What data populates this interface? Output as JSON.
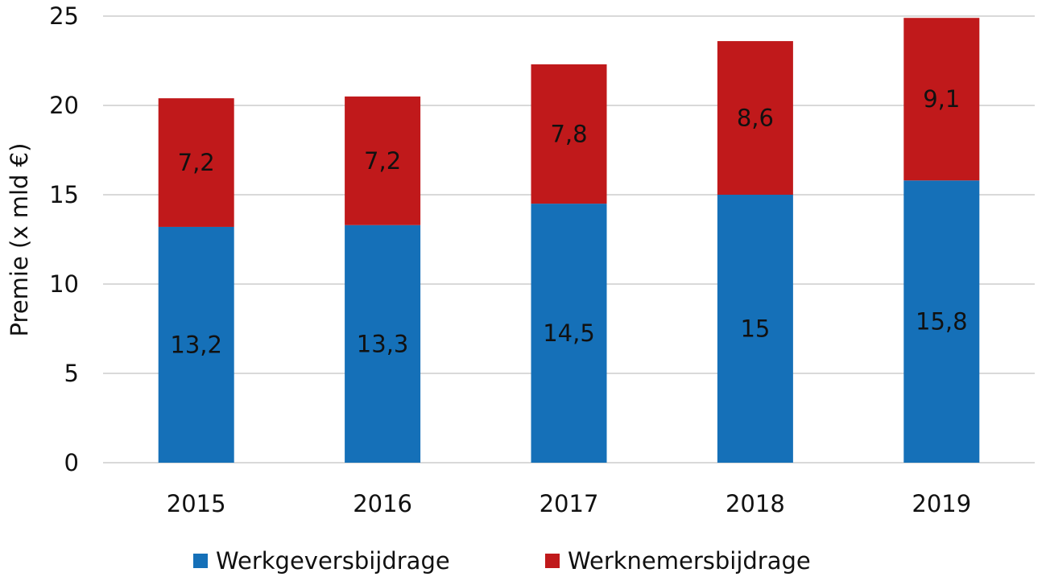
{
  "chart_data": {
    "type": "bar",
    "stacked": true,
    "categories": [
      "2015",
      "2016",
      "2017",
      "2018",
      "2019"
    ],
    "series": [
      {
        "name": "Werkgeversbijdrage",
        "values": [
          13.2,
          13.3,
          14.5,
          15,
          15.8
        ],
        "labels": [
          "13,2",
          "13,3",
          "14,5",
          "15",
          "15,8"
        ],
        "color": "#1570B8"
      },
      {
        "name": "Werknemersbijdrage",
        "values": [
          7.2,
          7.2,
          7.8,
          8.6,
          9.1
        ],
        "labels": [
          "7,2",
          "7,2",
          "7,8",
          "8,6",
          "9,1"
        ],
        "color": "#C0191B"
      }
    ],
    "title": "",
    "xlabel": "",
    "ylabel": "Premie (x mld €)",
    "ylim": [
      0,
      25
    ],
    "yticks": [
      0,
      5,
      10,
      15,
      20,
      25
    ],
    "grid": true,
    "legend_position": "bottom"
  }
}
